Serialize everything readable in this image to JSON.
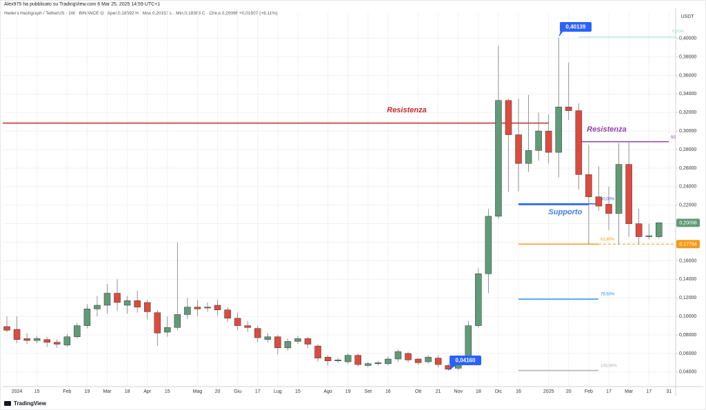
{
  "header": {
    "publisher": "Alex975 ha pubblicato su TradingView.com 6 Mar 25, 2025 14:59 UTC+1",
    "symbol": "Hedera Hashgraph / TetherUS · 1W · BINANCE  O · Aper.0,18592  H · Max.0,20151  L · Min.0,18383  C · Chius.0,20098  +0,01507 (+8,11%)",
    "currency": "USDT",
    "footer": "TradingView"
  },
  "chart_data": {
    "type": "candlestick",
    "categories": [
      null,
      "2024",
      null,
      "15",
      null,
      null,
      "Feb",
      null,
      "19",
      null,
      "Mar",
      null,
      "18",
      null,
      "Apr",
      null,
      "15",
      null,
      null,
      "Mag",
      null,
      "20",
      null,
      "Giu",
      null,
      "17",
      null,
      "Lug",
      null,
      "15",
      null,
      null,
      "Ago",
      null,
      "19",
      null,
      "Set",
      null,
      "16",
      null,
      null,
      "Ott",
      null,
      "21",
      null,
      "Nov",
      null,
      "18",
      null,
      "Dic",
      null,
      "16",
      null,
      null,
      "2025",
      null,
      "20",
      null,
      "Feb",
      null,
      "17",
      null,
      "Mar",
      null,
      "17",
      null,
      "31"
    ],
    "open": [
      0.089,
      0.086,
      0.076,
      0.074,
      0.075,
      0.072,
      0.069,
      0.078,
      0.09,
      0.108,
      0.112,
      0.125,
      0.112,
      0.117,
      0.115,
      0.104,
      0.083,
      0.088,
      0.102,
      0.11,
      0.11,
      0.112,
      0.107,
      0.098,
      0.09,
      0.087,
      0.075,
      0.078,
      0.066,
      0.073,
      0.076,
      0.068,
      0.056,
      0.052,
      0.051,
      0.058,
      0.047,
      0.049,
      0.049,
      0.054,
      0.06,
      0.054,
      0.051,
      0.055,
      0.047,
      0.044,
      0.055,
      0.09,
      0.146,
      0.208,
      0.333,
      0.296,
      0.265,
      0.279,
      0.3,
      0.277,
      0.326,
      0.322,
      0.253,
      0.229,
      0.221,
      0.211,
      0.264,
      0.2,
      0.186,
      0.18592,
      null
    ],
    "high": [
      0.1,
      0.1,
      0.082,
      0.079,
      0.078,
      0.075,
      0.081,
      0.093,
      0.113,
      0.122,
      0.135,
      0.14,
      0.122,
      0.128,
      0.118,
      0.107,
      0.1,
      0.18,
      0.12,
      0.118,
      0.115,
      0.118,
      0.11,
      0.104,
      0.095,
      0.09,
      0.082,
      0.08,
      0.076,
      0.079,
      0.078,
      0.07,
      0.058,
      0.055,
      0.06,
      0.06,
      0.051,
      0.052,
      0.057,
      0.064,
      0.062,
      0.055,
      0.058,
      0.058,
      0.049,
      0.058,
      0.095,
      0.152,
      0.216,
      0.392,
      0.335,
      0.335,
      0.339,
      0.32,
      0.318,
      0.401,
      0.374,
      0.33,
      0.285,
      0.262,
      0.24,
      0.287,
      0.288,
      0.216,
      0.2,
      0.20151,
      null
    ],
    "low": [
      0.083,
      0.071,
      0.07,
      0.071,
      0.067,
      0.066,
      0.067,
      0.076,
      0.087,
      0.1,
      0.103,
      0.106,
      0.103,
      0.104,
      0.097,
      0.068,
      0.078,
      0.085,
      0.097,
      0.1,
      0.105,
      0.101,
      0.094,
      0.085,
      0.083,
      0.072,
      0.072,
      0.059,
      0.063,
      0.07,
      0.066,
      0.051,
      0.047,
      0.05,
      0.049,
      0.046,
      0.045,
      0.047,
      0.047,
      0.051,
      0.05,
      0.048,
      0.049,
      0.045,
      0.0416,
      0.042,
      0.053,
      0.088,
      0.125,
      0.205,
      0.234,
      0.235,
      0.256,
      0.268,
      0.265,
      0.25,
      0.312,
      0.237,
      0.178,
      0.214,
      0.193,
      0.178,
      0.186,
      0.178,
      0.183,
      0.18383,
      null
    ],
    "close": [
      0.085,
      0.075,
      0.074,
      0.076,
      0.072,
      0.07,
      0.078,
      0.09,
      0.108,
      0.112,
      0.125,
      0.115,
      0.117,
      0.11,
      0.105,
      0.082,
      0.088,
      0.102,
      0.11,
      0.108,
      0.109,
      0.107,
      0.098,
      0.09,
      0.088,
      0.077,
      0.078,
      0.066,
      0.073,
      0.076,
      0.07,
      0.055,
      0.052,
      0.053,
      0.058,
      0.048,
      0.049,
      0.05,
      0.054,
      0.062,
      0.053,
      0.05,
      0.056,
      0.048,
      0.043,
      0.055,
      0.09,
      0.146,
      0.208,
      0.333,
      0.296,
      0.265,
      0.279,
      0.3,
      0.277,
      0.326,
      0.322,
      0.253,
      0.229,
      0.219,
      0.211,
      0.264,
      0.2,
      0.186,
      0.187,
      0.20098,
      null
    ],
    "up_color": "#5f9b77",
    "down_color": "#dd4b3e",
    "ylim": [
      0.025,
      0.428
    ],
    "yticks": [
      {
        "value": 0.04,
        "label": "0,04000"
      },
      {
        "value": 0.06,
        "label": "0,06000"
      },
      {
        "value": 0.08,
        "label": "0,08000"
      },
      {
        "value": 0.1,
        "label": "0,10000"
      },
      {
        "value": 0.12,
        "label": "0,12000"
      },
      {
        "value": 0.14,
        "label": "0,14000"
      },
      {
        "value": 0.16,
        "label": "0,16000"
      },
      {
        "value": 0.18,
        "label": "0,18000"
      },
      {
        "value": 0.2,
        "label": "0,20000"
      },
      {
        "value": 0.22,
        "label": "0,22000"
      },
      {
        "value": 0.24,
        "label": "0,24000"
      },
      {
        "value": 0.26,
        "label": "0,26000"
      },
      {
        "value": 0.28,
        "label": "0,28000"
      },
      {
        "value": 0.3,
        "label": "0,30000"
      },
      {
        "value": 0.32,
        "label": "0,32000"
      },
      {
        "value": 0.34,
        "label": "0,34000"
      },
      {
        "value": 0.36,
        "label": "0,36000"
      },
      {
        "value": 0.38,
        "label": "0,38000"
      },
      {
        "value": 0.4,
        "label": "0,40000"
      }
    ],
    "grid": true,
    "levels": [
      {
        "label": "Resistenza",
        "value": 0.3086,
        "color": "#c62828"
      },
      {
        "label": "Resistenza",
        "value": 0.2885,
        "color": "#8e3fa6"
      },
      {
        "label": "Supporto",
        "value": 0.2205,
        "color": "#3d7fd9"
      }
    ],
    "fib": [
      {
        "label": "0,00%",
        "value": 0.40139,
        "color": "#9fd8d0"
      },
      {
        "label": "50,00%",
        "value": 0.2215,
        "color": "#2962ff"
      },
      {
        "label": "61,80%",
        "value": 0.17794,
        "color": "#f59a16"
      },
      {
        "label": "78,60%",
        "value": 0.1186,
        "color": "#2196f3"
      },
      {
        "label": "100,00%",
        "value": 0.0416,
        "color": "#b0b0b0"
      }
    ],
    "extra_label": {
      "label": "50",
      "value": 0.2885
    },
    "callouts": [
      {
        "label": "0,40139",
        "value": 0.40139
      },
      {
        "label": "0,04160",
        "value": 0.0416
      }
    ],
    "price_tags": [
      {
        "label": "0,20098",
        "value": 0.20098,
        "color": "#5f9b77"
      },
      {
        "label": "0,17794",
        "value": 0.17794,
        "color": "#f59a16"
      }
    ]
  }
}
